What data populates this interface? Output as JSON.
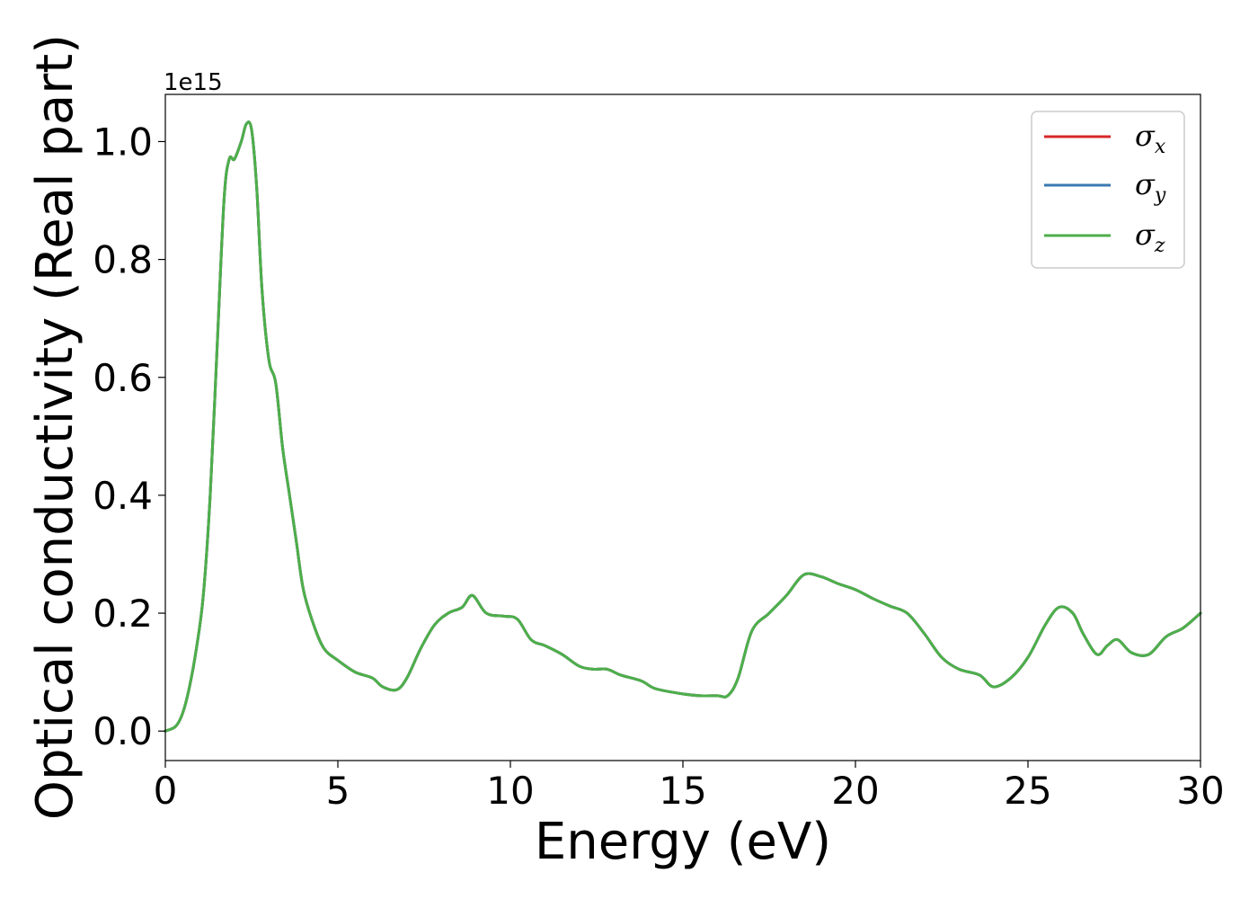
{
  "chart_data": {
    "type": "line",
    "title": "",
    "xlabel": "Energy (eV)",
    "ylabel": "Optical conductivity (Real part)",
    "y_offset_label": "1e15",
    "xlim": [
      0,
      30
    ],
    "ylim": [
      -0.05,
      1.08
    ],
    "xticks": [
      0,
      5,
      10,
      15,
      20,
      25,
      30
    ],
    "xtick_labels": [
      "0",
      "5",
      "10",
      "15",
      "20",
      "25",
      "30"
    ],
    "yticks": [
      0.0,
      0.2,
      0.4,
      0.6,
      0.8,
      1.0
    ],
    "ytick_labels": [
      "0.0",
      "0.2",
      "0.4",
      "0.6",
      "0.8",
      "1.0"
    ],
    "grid": false,
    "legend_position": "top-right",
    "x": [
      0,
      0.3,
      0.5,
      0.7,
      0.9,
      1.1,
      1.3,
      1.5,
      1.7,
      1.85,
      2.0,
      2.2,
      2.35,
      2.5,
      2.65,
      2.8,
      3.0,
      3.2,
      3.4,
      3.6,
      3.8,
      4.0,
      4.3,
      4.6,
      5.0,
      5.5,
      6.0,
      6.3,
      6.7,
      7.0,
      7.4,
      7.8,
      8.2,
      8.6,
      8.9,
      9.3,
      9.8,
      10.2,
      10.6,
      11.0,
      11.5,
      12.0,
      12.4,
      12.8,
      13.2,
      13.8,
      14.2,
      15.0,
      15.5,
      16.0,
      16.3,
      16.6,
      17.0,
      17.5,
      18.0,
      18.5,
      19.0,
      19.5,
      20.0,
      20.5,
      21.0,
      21.5,
      22.0,
      22.5,
      23.0,
      23.6,
      24.0,
      24.5,
      25.0,
      25.5,
      25.9,
      26.3,
      26.6,
      27.0,
      27.3,
      27.6,
      28.0,
      28.5,
      29.0,
      29.5,
      30.0
    ],
    "series": [
      {
        "name": "σx",
        "label_base": "σ",
        "label_sub": "x",
        "color": "#d62728",
        "values": [
          0.0,
          0.008,
          0.03,
          0.075,
          0.14,
          0.23,
          0.4,
          0.65,
          0.9,
          0.97,
          0.97,
          1.0,
          1.03,
          1.02,
          0.92,
          0.75,
          0.63,
          0.59,
          0.48,
          0.4,
          0.32,
          0.24,
          0.18,
          0.14,
          0.12,
          0.1,
          0.09,
          0.075,
          0.07,
          0.09,
          0.14,
          0.18,
          0.2,
          0.21,
          0.23,
          0.2,
          0.195,
          0.19,
          0.155,
          0.145,
          0.13,
          0.11,
          0.105,
          0.105,
          0.095,
          0.085,
          0.072,
          0.063,
          0.06,
          0.06,
          0.06,
          0.09,
          0.17,
          0.2,
          0.23,
          0.265,
          0.262,
          0.25,
          0.24,
          0.225,
          0.212,
          0.2,
          0.165,
          0.125,
          0.105,
          0.095,
          0.075,
          0.09,
          0.125,
          0.18,
          0.21,
          0.2,
          0.165,
          0.13,
          0.145,
          0.155,
          0.133,
          0.13,
          0.16,
          0.175,
          0.2
        ]
      },
      {
        "name": "σy",
        "label_base": "σ",
        "label_sub": "y",
        "color": "#3a78b0",
        "values": [
          0.0,
          0.008,
          0.03,
          0.075,
          0.14,
          0.23,
          0.4,
          0.65,
          0.9,
          0.97,
          0.97,
          1.0,
          1.03,
          1.02,
          0.92,
          0.75,
          0.63,
          0.59,
          0.48,
          0.4,
          0.32,
          0.24,
          0.18,
          0.14,
          0.12,
          0.1,
          0.09,
          0.075,
          0.07,
          0.09,
          0.14,
          0.18,
          0.2,
          0.21,
          0.23,
          0.2,
          0.195,
          0.19,
          0.155,
          0.145,
          0.13,
          0.11,
          0.105,
          0.105,
          0.095,
          0.085,
          0.072,
          0.063,
          0.06,
          0.06,
          0.06,
          0.09,
          0.17,
          0.2,
          0.23,
          0.265,
          0.262,
          0.25,
          0.24,
          0.225,
          0.212,
          0.2,
          0.165,
          0.125,
          0.105,
          0.095,
          0.075,
          0.09,
          0.125,
          0.18,
          0.21,
          0.2,
          0.165,
          0.13,
          0.145,
          0.155,
          0.133,
          0.13,
          0.16,
          0.175,
          0.2
        ]
      },
      {
        "name": "σz",
        "label_base": "σ",
        "label_sub": "z",
        "color": "#4daf4a",
        "values": [
          0.0,
          0.008,
          0.03,
          0.075,
          0.14,
          0.23,
          0.4,
          0.65,
          0.9,
          0.97,
          0.97,
          1.0,
          1.03,
          1.02,
          0.92,
          0.75,
          0.63,
          0.59,
          0.48,
          0.4,
          0.32,
          0.24,
          0.18,
          0.14,
          0.12,
          0.1,
          0.09,
          0.075,
          0.07,
          0.09,
          0.14,
          0.18,
          0.2,
          0.21,
          0.23,
          0.2,
          0.195,
          0.19,
          0.155,
          0.145,
          0.13,
          0.11,
          0.105,
          0.105,
          0.095,
          0.085,
          0.072,
          0.063,
          0.06,
          0.06,
          0.06,
          0.09,
          0.17,
          0.2,
          0.23,
          0.265,
          0.262,
          0.25,
          0.24,
          0.225,
          0.212,
          0.2,
          0.165,
          0.125,
          0.105,
          0.095,
          0.075,
          0.09,
          0.125,
          0.18,
          0.21,
          0.2,
          0.165,
          0.13,
          0.145,
          0.155,
          0.133,
          0.13,
          0.16,
          0.175,
          0.2
        ]
      }
    ]
  }
}
